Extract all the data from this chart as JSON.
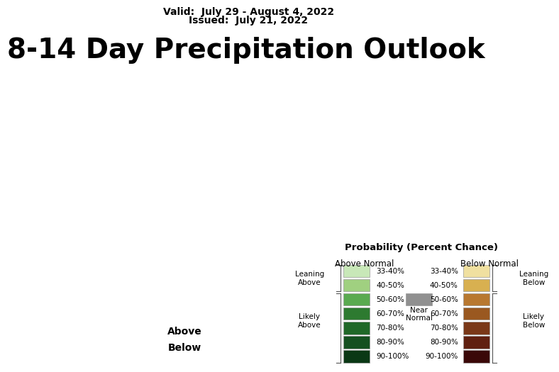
{
  "title": "8-14 Day Precipitation Outlook",
  "valid_text": "Valid:  July 29 - August 4, 2022",
  "issued_text": "Issued:  July 21, 2022",
  "title_fontsize": 28,
  "background_color": "#ffffff",
  "land_color": "#808080",
  "above_light1": "#c8e8b8",
  "above_light2": "#a0d080",
  "above_med1": "#5aaa50",
  "above_med2": "#2d7a30",
  "above_dark1": "#206828",
  "above_dark2": "#155020",
  "above_dark3": "#0a3815",
  "below_light1": "#f0e0a0",
  "below_light2": "#d8b050",
  "below_med1": "#b87830",
  "below_med2": "#9a5820",
  "below_dark1": "#7a3818",
  "below_dark2": "#602010",
  "below_dark3": "#3a0808",
  "near_color": "#909090",
  "legend_above_colors": [
    "#c8e8b8",
    "#a0d080",
    "#5aaa50",
    "#2d7a30",
    "#206828",
    "#155020",
    "#0a3815"
  ],
  "legend_below_colors": [
    "#f0e0a0",
    "#d8b050",
    "#b87830",
    "#9a5820",
    "#7a3818",
    "#602010",
    "#3a0808"
  ],
  "legend_labels_above": [
    "33-40%",
    "40-50%",
    "50-60%",
    "60-70%",
    "70-80%",
    "80-90%",
    "90-100%"
  ],
  "legend_labels_below": [
    "33-40%",
    "40-50%",
    "50-60%",
    "60-70%",
    "70-80%",
    "80-90%",
    "90-100%"
  ]
}
